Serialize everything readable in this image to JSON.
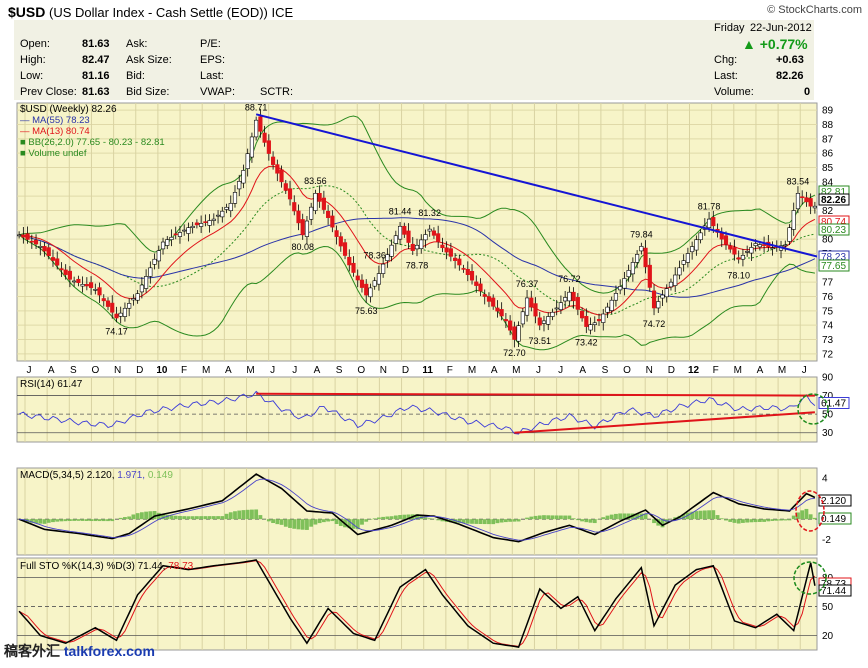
{
  "header": {
    "symbol": "$USD",
    "name": "(US Dollar Index - Cash Settle (EOD))",
    "exchange": "ICE",
    "brand": "© StockCharts.com"
  },
  "quote": {
    "day": "Friday",
    "date": "22-Jun-2012",
    "pct_change": "+0.77%",
    "labels": {
      "open": "Open:",
      "high": "High:",
      "low": "Low:",
      "prev_close": "Prev Close:",
      "ask": "Ask:",
      "ask_size": "Ask Size:",
      "bid": "Bid:",
      "bid_size": "Bid Size:",
      "pe": "P/E:",
      "eps": "EPS:",
      "last": "Last:",
      "vwap": "VWAP:",
      "sctr": "SCTR:",
      "chg": "Chg:",
      "last2": "Last:",
      "volume": "Volume:"
    },
    "values": {
      "open": "81.63",
      "high": "82.47",
      "low": "81.16",
      "prev_close": "81.63",
      "chg": "+0.63",
      "last": "82.26",
      "volume": "0"
    }
  },
  "colors": {
    "panel_bg": "#f7f4c8",
    "up": "#000000",
    "down": "#e0141a",
    "ma55": "#2a33a8",
    "ma13": "#e0141a",
    "bb": "#2a8a1f",
    "trend": "#1515d4",
    "highlight_circle_green": "#1c8a1c",
    "highlight_circle_red": "#e0141a"
  },
  "chart_data": [
    {
      "type": "candlestick",
      "legend": {
        "main": "$USD (Weekly) 82.26",
        "ma55": "MA(55) 78.23",
        "ma13": "MA(13) 80.74",
        "bb": "BB(26,2.0) 77.65 - 80.23 - 82.81",
        "vol": "Volume undef"
      },
      "ylim": [
        71.5,
        89.5
      ],
      "y_ticks": [
        "72",
        "73",
        "74",
        "75",
        "76",
        "77",
        "78",
        "79",
        "80",
        "81",
        "82",
        "83",
        "84",
        "85",
        "86",
        "87",
        "88",
        "89"
      ],
      "x_ticks": [
        "J",
        "A",
        "S",
        "O",
        "N",
        "D",
        "10",
        "F",
        "M",
        "A",
        "M",
        "J",
        "J",
        "A",
        "S",
        "O",
        "N",
        "D",
        "11",
        "F",
        "M",
        "A",
        "M",
        "J",
        "J",
        "A",
        "S",
        "O",
        "N",
        "D",
        "12",
        "F",
        "M",
        "A",
        "M",
        "J"
      ],
      "annotations": [
        {
          "label": "88.71",
          "week": 56,
          "value": 88.71
        },
        {
          "label": "74.17",
          "week": 23,
          "value": 74.17
        },
        {
          "label": "83.56",
          "week": 70,
          "value": 83.56
        },
        {
          "label": "80.08",
          "week": 67,
          "value": 80.08
        },
        {
          "label": "75.63",
          "week": 82,
          "value": 75.63
        },
        {
          "label": "78.36",
          "week": 84,
          "value": 78.36
        },
        {
          "label": "81.44",
          "week": 90,
          "value": 81.44
        },
        {
          "label": "81.32",
          "week": 97,
          "value": 81.32
        },
        {
          "label": "78.78",
          "week": 94,
          "value": 78.78
        },
        {
          "label": "72.70",
          "week": 117,
          "value": 72.7
        },
        {
          "label": "76.37",
          "week": 120,
          "value": 76.37
        },
        {
          "label": "73.51",
          "week": 123,
          "value": 73.51
        },
        {
          "label": "76.72",
          "week": 130,
          "value": 76.72
        },
        {
          "label": "73.42",
          "week": 134,
          "value": 73.42
        },
        {
          "label": "79.84",
          "week": 147,
          "value": 79.84
        },
        {
          "label": "74.72",
          "week": 150,
          "value": 74.72
        },
        {
          "label": "81.78",
          "week": 163,
          "value": 81.78
        },
        {
          "label": "78.10",
          "week": 170,
          "value": 78.1
        },
        {
          "label": "83.54",
          "week": 184,
          "value": 83.54
        }
      ],
      "price_tags": [
        {
          "label": "82.81",
          "value": 82.81,
          "color": "#2a8a1f"
        },
        {
          "label": "82.26",
          "value": 82.26,
          "color": "#000000"
        },
        {
          "label": "80.74",
          "value": 80.74,
          "color": "#e0141a"
        },
        {
          "label": "80.23",
          "value": 80.23,
          "color": "#2a8a1f"
        },
        {
          "label": "78.23",
          "value": 78.23,
          "color": "#2a33a8"
        },
        {
          "label": "77.65",
          "value": 77.65,
          "color": "#2a8a1f"
        }
      ],
      "pivots": [
        [
          0,
          80.3
        ],
        [
          5,
          79.5
        ],
        [
          12,
          77.2
        ],
        [
          18,
          76.5
        ],
        [
          23,
          74.5
        ],
        [
          28,
          76.2
        ],
        [
          34,
          79.8
        ],
        [
          40,
          80.8
        ],
        [
          46,
          81.4
        ],
        [
          50,
          82.5
        ],
        [
          53,
          84.8
        ],
        [
          56,
          88.3
        ],
        [
          60,
          85.2
        ],
        [
          64,
          82.8
        ],
        [
          67,
          80.3
        ],
        [
          70,
          83.2
        ],
        [
          73,
          81.5
        ],
        [
          78,
          78.2
        ],
        [
          82,
          76.1
        ],
        [
          85,
          77.6
        ],
        [
          90,
          80.9
        ],
        [
          93,
          79.2
        ],
        [
          97,
          80.7
        ],
        [
          100,
          79.4
        ],
        [
          105,
          77.9
        ],
        [
          110,
          76.0
        ],
        [
          115,
          74.3
        ],
        [
          117,
          73.0
        ],
        [
          120,
          75.9
        ],
        [
          123,
          74.0
        ],
        [
          127,
          75.2
        ],
        [
          130,
          76.3
        ],
        [
          134,
          73.9
        ],
        [
          137,
          74.3
        ],
        [
          142,
          76.7
        ],
        [
          147,
          79.5
        ],
        [
          150,
          75.2
        ],
        [
          154,
          77.0
        ],
        [
          158,
          79.0
        ],
        [
          163,
          81.4
        ],
        [
          166,
          80.0
        ],
        [
          170,
          78.6
        ],
        [
          174,
          79.7
        ],
        [
          178,
          79.4
        ],
        [
          181,
          79.6
        ],
        [
          184,
          83.2
        ],
        [
          187,
          82.3
        ]
      ],
      "trendline": [
        [
          56,
          88.71
        ],
        [
          188,
          79.0
        ]
      ]
    },
    {
      "type": "line",
      "legend": "RSI(14) 61.47",
      "ylim": [
        20,
        90
      ],
      "y_ticks": [
        "90",
        "70",
        "50",
        "30"
      ],
      "guides": [
        70,
        50,
        30
      ],
      "last_tag": "61.47",
      "pivots": [
        [
          0,
          50
        ],
        [
          8,
          45
        ],
        [
          16,
          40
        ],
        [
          22,
          38
        ],
        [
          30,
          52
        ],
        [
          40,
          60
        ],
        [
          48,
          64
        ],
        [
          56,
          72
        ],
        [
          62,
          56
        ],
        [
          67,
          45
        ],
        [
          72,
          58
        ],
        [
          80,
          38
        ],
        [
          86,
          46
        ],
        [
          92,
          58
        ],
        [
          98,
          53
        ],
        [
          106,
          42
        ],
        [
          114,
          36
        ],
        [
          118,
          30
        ],
        [
          124,
          40
        ],
        [
          130,
          48
        ],
        [
          136,
          37
        ],
        [
          144,
          55
        ],
        [
          150,
          48
        ],
        [
          156,
          58
        ],
        [
          163,
          66
        ],
        [
          170,
          55
        ],
        [
          176,
          57
        ],
        [
          182,
          56
        ],
        [
          186,
          68
        ],
        [
          188,
          61.47
        ]
      ],
      "red_lines": [
        [
          [
            56,
            72
          ],
          [
            188,
            70
          ]
        ],
        [
          [
            117,
            30
          ],
          [
            188,
            52
          ]
        ]
      ]
    },
    {
      "type": "line",
      "legend": {
        "title": "MACD(5,34,5)",
        "macd": "2.120",
        "signal": "1.971",
        "hist": "0.149"
      },
      "ylim": [
        -3.5,
        5
      ],
      "y_ticks": [
        "4",
        "2",
        "0",
        "-2"
      ],
      "guides": [
        0
      ],
      "last_tags": [
        "2.120",
        "0.149"
      ],
      "pivots": [
        [
          0,
          0.0
        ],
        [
          6,
          -1.0
        ],
        [
          14,
          -1.4
        ],
        [
          22,
          -1.9
        ],
        [
          26,
          -1.4
        ],
        [
          32,
          0.3
        ],
        [
          40,
          1.0
        ],
        [
          48,
          1.8
        ],
        [
          56,
          4.4
        ],
        [
          62,
          3.0
        ],
        [
          68,
          0.8
        ],
        [
          74,
          0.6
        ],
        [
          80,
          -1.5
        ],
        [
          88,
          -0.6
        ],
        [
          94,
          0.4
        ],
        [
          98,
          0.3
        ],
        [
          104,
          -0.5
        ],
        [
          112,
          -1.8
        ],
        [
          118,
          -2.2
        ],
        [
          124,
          -1.3
        ],
        [
          130,
          -0.6
        ],
        [
          136,
          -1.5
        ],
        [
          142,
          -0.2
        ],
        [
          148,
          0.9
        ],
        [
          152,
          -0.6
        ],
        [
          156,
          0.2
        ],
        [
          164,
          2.6
        ],
        [
          170,
          1.5
        ],
        [
          176,
          1.0
        ],
        [
          182,
          0.8
        ],
        [
          186,
          2.5
        ],
        [
          188,
          2.12
        ]
      ]
    },
    {
      "type": "line",
      "legend": {
        "title": "Full STO %K(14,3) %D(3)",
        "k": "71.44",
        "d": "78.73"
      },
      "ylim": [
        5,
        100
      ],
      "y_ticks": [
        "80",
        "50",
        "20"
      ],
      "guides": [
        80,
        50,
        20
      ],
      "last_tags": [
        "78.73",
        "71.44"
      ],
      "pivots": [
        [
          0,
          45
        ],
        [
          5,
          20
        ],
        [
          11,
          12
        ],
        [
          18,
          28
        ],
        [
          23,
          15
        ],
        [
          28,
          62
        ],
        [
          34,
          92
        ],
        [
          40,
          88
        ],
        [
          46,
          92
        ],
        [
          52,
          95
        ],
        [
          56,
          98
        ],
        [
          60,
          68
        ],
        [
          64,
          38
        ],
        [
          68,
          12
        ],
        [
          73,
          48
        ],
        [
          79,
          22
        ],
        [
          84,
          15
        ],
        [
          90,
          70
        ],
        [
          96,
          88
        ],
        [
          100,
          62
        ],
        [
          106,
          30
        ],
        [
          112,
          12
        ],
        [
          118,
          8
        ],
        [
          123,
          68
        ],
        [
          128,
          48
        ],
        [
          132,
          60
        ],
        [
          136,
          25
        ],
        [
          141,
          58
        ],
        [
          147,
          90
        ],
        [
          150,
          30
        ],
        [
          155,
          72
        ],
        [
          160,
          88
        ],
        [
          164,
          92
        ],
        [
          169,
          35
        ],
        [
          174,
          28
        ],
        [
          179,
          42
        ],
        [
          183,
          25
        ],
        [
          187,
          95
        ],
        [
          188,
          71.44
        ]
      ]
    }
  ]
}
